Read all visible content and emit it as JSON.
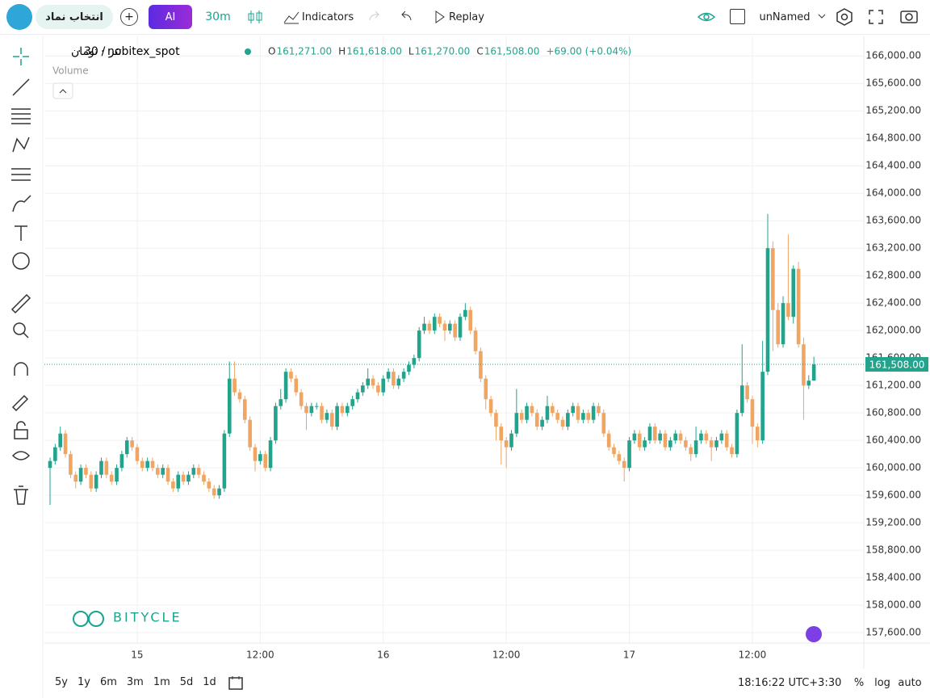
{
  "toolbar": {
    "symbol_search": "انتخاب نماد",
    "ai": "AI",
    "interval": "30m",
    "indicators": "Indicators",
    "replay": "Replay",
    "layout": "unNamed"
  },
  "chart_data": {
    "type": "candlestick",
    "symbol": "تتر / تومان",
    "separator": "·",
    "interval": "30",
    "exchange": "nobitex_spot",
    "legend": [
      {
        "key": "O",
        "text": "161,271.00"
      },
      {
        "key": "H",
        "text": "161,618.00"
      },
      {
        "key": "L",
        "text": "161,270.00"
      },
      {
        "key": "C",
        "text": "161,508.00"
      }
    ],
    "change": "+69.00 (+0.04%)",
    "volume_label": "Volume",
    "watermark": "BITYCLE",
    "last_price_label": "161,508.00",
    "up_color": "#22a38c",
    "down_color": "#f0a562",
    "grid": true,
    "categories": [
      null,
      null,
      null,
      null,
      null,
      null,
      null,
      null,
      null,
      null,
      null,
      null,
      null,
      null,
      null,
      null,
      null,
      "15",
      null,
      null,
      null,
      null,
      null,
      null,
      null,
      null,
      null,
      null,
      null,
      null,
      null,
      null,
      null,
      null,
      null,
      null,
      null,
      null,
      null,
      null,
      null,
      "12:00",
      null,
      null,
      null,
      null,
      null,
      null,
      null,
      null,
      null,
      null,
      null,
      null,
      null,
      null,
      null,
      null,
      null,
      null,
      null,
      null,
      null,
      null,
      null,
      "16",
      null,
      null,
      null,
      null,
      null,
      null,
      null,
      null,
      null,
      null,
      null,
      null,
      null,
      null,
      null,
      null,
      null,
      null,
      null,
      null,
      null,
      null,
      null,
      "12:00",
      null,
      null,
      null,
      null,
      null,
      null,
      null,
      null,
      null,
      null,
      null,
      null,
      null,
      null,
      null,
      null,
      null,
      null,
      null,
      null,
      null,
      null,
      null,
      "17",
      null,
      null,
      null,
      null,
      null,
      null,
      null,
      null,
      null,
      null,
      null,
      null,
      null,
      null,
      null,
      null,
      null,
      null,
      null,
      null,
      null,
      null,
      null,
      "12:00",
      null,
      null,
      null,
      null,
      null,
      null,
      null,
      null,
      null,
      null,
      null,
      null
    ],
    "open": [
      160000,
      160100,
      160300,
      160500,
      160200,
      159900,
      159800,
      160000,
      159900,
      159700,
      159900,
      160100,
      159900,
      159800,
      160000,
      160200,
      160400,
      160300,
      160100,
      160000,
      160100,
      160000,
      159900,
      160000,
      159800,
      159700,
      159900,
      159800,
      159900,
      160000,
      159900,
      159800,
      159700,
      159600,
      159700,
      160500,
      161300,
      161100,
      161000,
      160700,
      160300,
      160100,
      160200,
      160000,
      160400,
      160900,
      161000,
      161400,
      161300,
      161100,
      160900,
      160800,
      160900,
      160900,
      160700,
      160800,
      160600,
      160900,
      160800,
      160900,
      161000,
      161100,
      161200,
      161300,
      161200,
      161100,
      161300,
      161400,
      161200,
      161300,
      161400,
      161500,
      161600,
      162000,
      162100,
      162000,
      162200,
      162100,
      162000,
      162100,
      161900,
      162200,
      162300,
      162000,
      161700,
      161300,
      161000,
      160800,
      160600,
      160400,
      160300,
      160500,
      160800,
      160700,
      160900,
      160800,
      160600,
      160700,
      160900,
      160800,
      160700,
      160600,
      160800,
      160900,
      160700,
      160800,
      160700,
      160900,
      160800,
      160500,
      160300,
      160200,
      160100,
      160000,
      160400,
      160500,
      160300,
      160400,
      160600,
      160400,
      160500,
      160300,
      160400,
      160500,
      160400,
      160300,
      160200,
      160400,
      160500,
      160400,
      160300,
      160400,
      160500,
      160300,
      160200,
      160800,
      161200,
      161000,
      160600,
      160400,
      161400,
      163200,
      162300,
      161800,
      162400,
      162200,
      162900,
      161800,
      161200,
      161271
    ],
    "high": [
      160150,
      160350,
      160600,
      160550,
      160250,
      159950,
      160050,
      160050,
      159950,
      159950,
      160150,
      160150,
      159950,
      160050,
      160250,
      160450,
      160450,
      160350,
      160150,
      160150,
      160150,
      160050,
      160050,
      160050,
      159850,
      159950,
      159950,
      159950,
      160050,
      160050,
      159950,
      159850,
      159750,
      159750,
      160550,
      161550,
      161550,
      161150,
      161050,
      160750,
      160350,
      160250,
      160250,
      160450,
      160950,
      161150,
      161450,
      161450,
      161350,
      161150,
      160950,
      160950,
      160950,
      160950,
      160850,
      160850,
      160950,
      160950,
      160950,
      161050,
      161150,
      161250,
      161450,
      161350,
      161250,
      161350,
      161450,
      161450,
      161350,
      161450,
      161550,
      161650,
      162050,
      162200,
      162150,
      162250,
      162250,
      162150,
      162150,
      162150,
      162250,
      162400,
      162350,
      162050,
      161750,
      161350,
      161050,
      160850,
      160650,
      160450,
      160550,
      161150,
      160850,
      160950,
      160950,
      160850,
      160750,
      161050,
      160950,
      160850,
      160750,
      160850,
      160950,
      160950,
      160850,
      160850,
      160950,
      160950,
      160850,
      160550,
      160350,
      160250,
      160150,
      160450,
      160550,
      160550,
      160450,
      160650,
      160650,
      160550,
      160550,
      160450,
      160550,
      160550,
      160450,
      160350,
      160600,
      160550,
      160550,
      160450,
      160450,
      160550,
      160550,
      160350,
      160850,
      161800,
      161250,
      161050,
      160650,
      161850,
      163700,
      163300,
      162400,
      162500,
      163400,
      162950,
      163000,
      161900,
      161350,
      161618
    ],
    "low": [
      159460,
      160050,
      160250,
      160150,
      159850,
      159700,
      159750,
      159850,
      159650,
      159650,
      159850,
      159850,
      159750,
      159750,
      159950,
      160150,
      160250,
      160050,
      159950,
      159950,
      159950,
      159850,
      159850,
      159750,
      159650,
      159650,
      159750,
      159750,
      159850,
      159850,
      159750,
      159650,
      159550,
      159550,
      159650,
      160450,
      161050,
      160950,
      160650,
      160250,
      159950,
      160050,
      159950,
      159950,
      160350,
      160850,
      160950,
      161250,
      161050,
      160850,
      160550,
      160750,
      160850,
      160650,
      160650,
      160550,
      160550,
      160750,
      160750,
      160850,
      160950,
      161050,
      161150,
      161150,
      161050,
      161050,
      161250,
      161150,
      161150,
      161250,
      161350,
      161450,
      161550,
      161950,
      161950,
      161950,
      162050,
      161850,
      161950,
      161850,
      161850,
      162150,
      161950,
      161650,
      161250,
      160850,
      160750,
      160400,
      160050,
      160000,
      160250,
      160450,
      160650,
      160650,
      160750,
      160550,
      160550,
      160650,
      160750,
      160650,
      160550,
      160550,
      160750,
      160650,
      160650,
      160650,
      160650,
      160750,
      160450,
      160250,
      160150,
      160050,
      159800,
      159950,
      160350,
      160250,
      160250,
      160350,
      160350,
      160350,
      160250,
      160250,
      160350,
      160350,
      160250,
      160100,
      160150,
      160350,
      160350,
      160100,
      160250,
      160350,
      160250,
      160150,
      160150,
      160750,
      160950,
      160350,
      160300,
      160350,
      161350,
      161700,
      161750,
      161750,
      162150,
      162100,
      161750,
      160700,
      161150,
      161270
    ],
    "close": [
      160100,
      160300,
      160500,
      160200,
      159900,
      159800,
      160000,
      159900,
      159700,
      159900,
      160100,
      159900,
      159800,
      160000,
      160200,
      160400,
      160300,
      160100,
      160000,
      160100,
      160000,
      159900,
      160000,
      159800,
      159700,
      159900,
      159800,
      159900,
      160000,
      159900,
      159800,
      159700,
      159600,
      159700,
      160500,
      161300,
      161100,
      161000,
      160700,
      160300,
      160100,
      160200,
      160000,
      160400,
      160900,
      161000,
      161400,
      161300,
      161100,
      160900,
      160800,
      160900,
      160900,
      160700,
      160800,
      160600,
      160900,
      160800,
      160900,
      161000,
      161100,
      161200,
      161300,
      161200,
      161100,
      161300,
      161400,
      161200,
      161300,
      161400,
      161500,
      161600,
      162000,
      162100,
      162000,
      162200,
      162100,
      162000,
      162100,
      161900,
      162200,
      162300,
      162000,
      161700,
      161300,
      161000,
      160800,
      160600,
      160400,
      160300,
      160500,
      160800,
      160700,
      160900,
      160800,
      160600,
      160700,
      160900,
      160800,
      160700,
      160600,
      160800,
      160900,
      160700,
      160800,
      160700,
      160900,
      160800,
      160500,
      160300,
      160200,
      160100,
      160000,
      160400,
      160500,
      160300,
      160400,
      160600,
      160400,
      160500,
      160300,
      160400,
      160500,
      160400,
      160300,
      160200,
      160400,
      160500,
      160400,
      160300,
      160400,
      160500,
      160300,
      160200,
      160800,
      161200,
      161000,
      160600,
      160400,
      161400,
      163200,
      162300,
      161800,
      162400,
      162200,
      162900,
      161800,
      161200,
      161270,
      161508
    ],
    "ylim": [
      157460,
      166250
    ],
    "yticks": [
      {
        "value": 157600,
        "label": "157,600.00"
      },
      {
        "value": 158000,
        "label": "158,000.00"
      },
      {
        "value": 158400,
        "label": "158,400.00"
      },
      {
        "value": 158800,
        "label": "158,800.00"
      },
      {
        "value": 159200,
        "label": "159,200.00"
      },
      {
        "value": 159600,
        "label": "159,600.00"
      },
      {
        "value": 160000,
        "label": "160,000.00"
      },
      {
        "value": 160400,
        "label": "160,400.00"
      },
      {
        "value": 160800,
        "label": "160,800.00"
      },
      {
        "value": 161200,
        "label": "161,200.00"
      },
      {
        "value": 161600,
        "label": "161,600.00"
      },
      {
        "value": 162000,
        "label": "162,000.00"
      },
      {
        "value": 162400,
        "label": "162,400.00"
      },
      {
        "value": 162800,
        "label": "162,800.00"
      },
      {
        "value": 163200,
        "label": "163,200.00"
      },
      {
        "value": 163600,
        "label": "163,600.00"
      },
      {
        "value": 164000,
        "label": "164,000.00"
      },
      {
        "value": 164400,
        "label": "164,400.00"
      },
      {
        "value": 164800,
        "label": "164,800.00"
      },
      {
        "value": 165200,
        "label": "165,200.00"
      },
      {
        "value": 165600,
        "label": "165,600.00"
      },
      {
        "value": 166000,
        "label": "166,000.00"
      }
    ]
  },
  "bottom_bar": {
    "ranges": [
      "5y",
      "1y",
      "6m",
      "3m",
      "1m",
      "5d",
      "1d"
    ],
    "clock": "18:16:22 UTC+3:30",
    "percent": "%",
    "log": "log",
    "auto": "auto"
  }
}
